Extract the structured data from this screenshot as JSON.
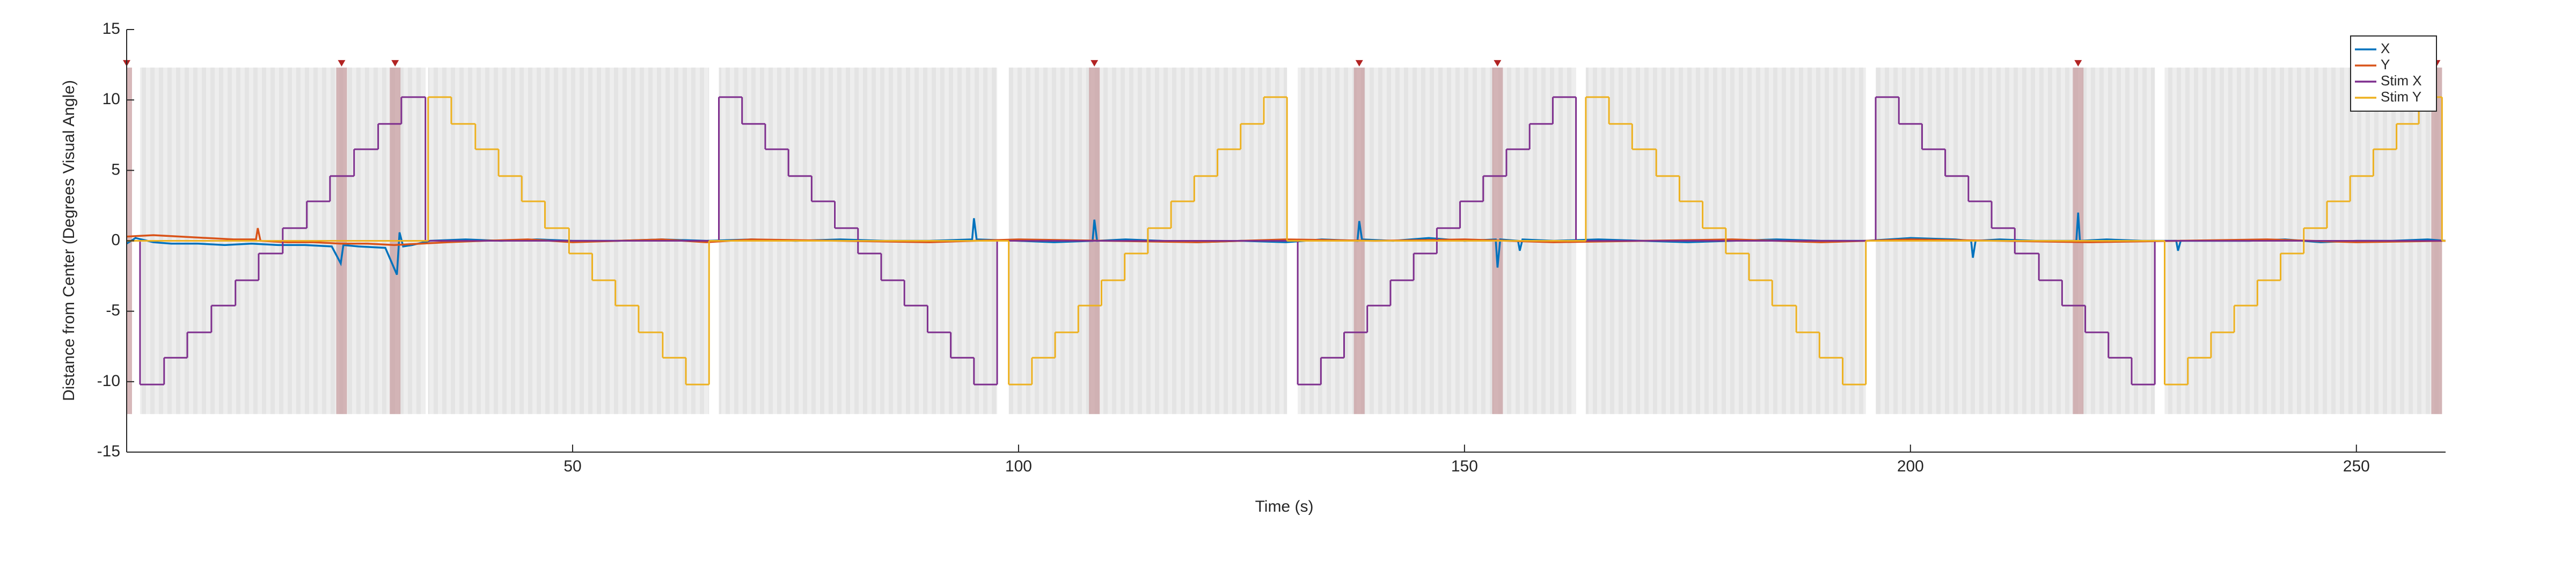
{
  "chart_data": {
    "type": "line",
    "xlabel": "Time (s)",
    "ylabel": "Distance from Center (Degrees Visual Angle)",
    "xlim": [
      0,
      260
    ],
    "xticks": [
      50,
      100,
      150,
      200,
      250
    ],
    "ylim": [
      -15,
      15
    ],
    "yticks": [
      -15,
      -10,
      -5,
      0,
      5,
      10,
      15
    ],
    "legend": "northeast",
    "trial_blocks": [
      [
        1.5,
        33.5
      ],
      [
        33.8,
        65.3
      ],
      [
        66.4,
        97.6
      ],
      [
        98.9,
        130.1
      ],
      [
        131.3,
        162.5
      ],
      [
        163.6,
        195.0
      ],
      [
        196.1,
        227.4
      ],
      [
        228.5,
        259.6
      ]
    ],
    "block_ylim": [
      -12.3,
      12.3
    ],
    "event_markers": [
      0,
      24.1,
      30.1,
      108.5,
      138.2,
      153.7,
      218.8,
      259
    ],
    "series": [
      {
        "name": "X",
        "color": "#0072BD",
        "step": false,
        "x": [
          0,
          1,
          3,
          5,
          8,
          11,
          14,
          17,
          20,
          23,
          24,
          24.3,
          26,
          29,
          30.3,
          30.6,
          31,
          32,
          34,
          38,
          42,
          46,
          50,
          55,
          60,
          65,
          70,
          75,
          80,
          85,
          90,
          94.8,
          95,
          95.3,
          100,
          104,
          108.3,
          108.5,
          108.8,
          112,
          116,
          120,
          125,
          130,
          134,
          138,
          138.2,
          138.5,
          142,
          146,
          150,
          153.5,
          153.7,
          154,
          156,
          156.2,
          156.5,
          160,
          165,
          170,
          175,
          180,
          185,
          190,
          195,
          200,
          205,
          206.8,
          207,
          207.3,
          210,
          214,
          218.6,
          218.8,
          219,
          222,
          226,
          229.8,
          230,
          230.3,
          234,
          238,
          242,
          246,
          250,
          254,
          258,
          260
        ],
        "values": [
          -0.2,
          0.2,
          -0.1,
          -0.2,
          -0.2,
          -0.3,
          -0.2,
          -0.3,
          -0.3,
          -0.4,
          -1.6,
          -0.3,
          -0.4,
          -0.5,
          -2.4,
          0.6,
          -0.4,
          -0.3,
          0,
          0.1,
          0,
          0.1,
          0,
          0,
          0.1,
          0,
          0.1,
          0,
          0.1,
          0,
          0,
          0.1,
          1.6,
          0.1,
          0,
          -0.1,
          0,
          1.5,
          0,
          0.1,
          0,
          -0.1,
          0,
          -0.1,
          0.1,
          0,
          1.4,
          0.1,
          0,
          0.2,
          0,
          0.1,
          -1.9,
          0.1,
          0,
          -0.7,
          0.1,
          0,
          0.1,
          0,
          -0.1,
          0,
          0.1,
          0,
          0,
          0.2,
          0.1,
          0,
          -1.2,
          0,
          0.1,
          0,
          0,
          2.0,
          0,
          0.1,
          0,
          0,
          -0.7,
          0,
          0,
          0,
          0.1,
          -0.1,
          0,
          0,
          0.1,
          0
        ]
      },
      {
        "name": "Y",
        "color": "#D95319",
        "step": false,
        "x": [
          0,
          3,
          6,
          9,
          12,
          14.5,
          14.7,
          15,
          18,
          21,
          24,
          27,
          30,
          33,
          36,
          40,
          45,
          50,
          55,
          60,
          65,
          70,
          80,
          90,
          100,
          110,
          120,
          130,
          140,
          150,
          160,
          170,
          180,
          190,
          200,
          210,
          220,
          230,
          240,
          250,
          260
        ],
        "values": [
          0.3,
          0.4,
          0.3,
          0.2,
          0.1,
          0.1,
          0.9,
          0,
          -0.1,
          -0.1,
          -0.2,
          -0.2,
          -0.3,
          -0.2,
          -0.1,
          0,
          0.1,
          -0.1,
          0,
          0.1,
          -0.1,
          0.1,
          0,
          -0.1,
          0.1,
          0,
          -0.1,
          0.1,
          0,
          0.1,
          -0.1,
          0,
          0.1,
          -0.1,
          0.1,
          0,
          -0.1,
          0,
          0.1,
          -0.1,
          0
        ]
      },
      {
        "name": "Stim X",
        "color": "#7E2F8E",
        "step": true,
        "x": [
          0,
          1.5,
          4.2,
          6.8,
          9.5,
          12.2,
          14.8,
          17.5,
          20.2,
          22.8,
          25.5,
          28.2,
          30.8,
          33.5,
          66.4,
          69.0,
          71.6,
          74.2,
          76.8,
          79.4,
          82.0,
          84.6,
          87.2,
          89.8,
          92.4,
          95.0,
          97.6,
          131.3,
          133.9,
          136.5,
          139.1,
          141.7,
          144.3,
          146.9,
          149.5,
          152.1,
          154.7,
          157.3,
          159.9,
          162.5,
          196.1,
          198.7,
          201.3,
          203.9,
          206.5,
          209.1,
          211.7,
          214.4,
          217.0,
          219.6,
          222.2,
          224.8,
          227.4,
          260
        ],
        "values": [
          0,
          -10.2,
          -8.3,
          -6.5,
          -4.6,
          -2.8,
          -0.9,
          0.9,
          2.8,
          4.6,
          6.5,
          8.3,
          10.2,
          0,
          10.2,
          8.3,
          6.5,
          4.6,
          2.8,
          0.9,
          -0.9,
          -2.8,
          -4.6,
          -6.5,
          -8.3,
          -10.2,
          0,
          -10.2,
          -8.3,
          -6.5,
          -4.6,
          -2.8,
          -0.9,
          0.9,
          2.8,
          4.6,
          6.5,
          8.3,
          10.2,
          0,
          10.2,
          8.3,
          6.5,
          4.6,
          2.8,
          0.9,
          -0.9,
          -2.8,
          -4.6,
          -6.5,
          -8.3,
          -10.2,
          0,
          0
        ]
      },
      {
        "name": "Stim Y",
        "color": "#EDB120",
        "step": true,
        "x": [
          0,
          33.8,
          36.4,
          39.1,
          41.7,
          44.3,
          46.9,
          49.6,
          52.2,
          54.8,
          57.4,
          60.1,
          62.7,
          65.3,
          98.9,
          101.5,
          104.1,
          106.7,
          109.3,
          111.9,
          114.5,
          117.1,
          119.7,
          122.3,
          124.9,
          127.5,
          130.1,
          163.6,
          166.2,
          168.8,
          171.5,
          174.1,
          176.7,
          179.3,
          181.9,
          184.5,
          187.2,
          189.8,
          192.4,
          195.0,
          228.5,
          231.1,
          233.7,
          236.3,
          238.9,
          241.5,
          244.1,
          246.7,
          249.3,
          251.9,
          254.5,
          257.0,
          259.6,
          260
        ],
        "values": [
          0,
          10.2,
          8.3,
          6.5,
          4.6,
          2.8,
          0.9,
          -0.9,
          -2.8,
          -4.6,
          -6.5,
          -8.3,
          -10.2,
          0,
          -10.2,
          -8.3,
          -6.5,
          -4.6,
          -2.8,
          -0.9,
          0.9,
          2.8,
          4.6,
          6.5,
          8.3,
          10.2,
          0,
          10.2,
          8.3,
          6.5,
          4.6,
          2.8,
          0.9,
          -0.9,
          -2.8,
          -4.6,
          -6.5,
          -8.3,
          -10.2,
          0,
          -10.2,
          -8.3,
          -6.5,
          -4.6,
          -2.8,
          -0.9,
          0.9,
          2.8,
          4.6,
          6.5,
          8.3,
          10.2,
          0,
          0
        ]
      }
    ]
  }
}
